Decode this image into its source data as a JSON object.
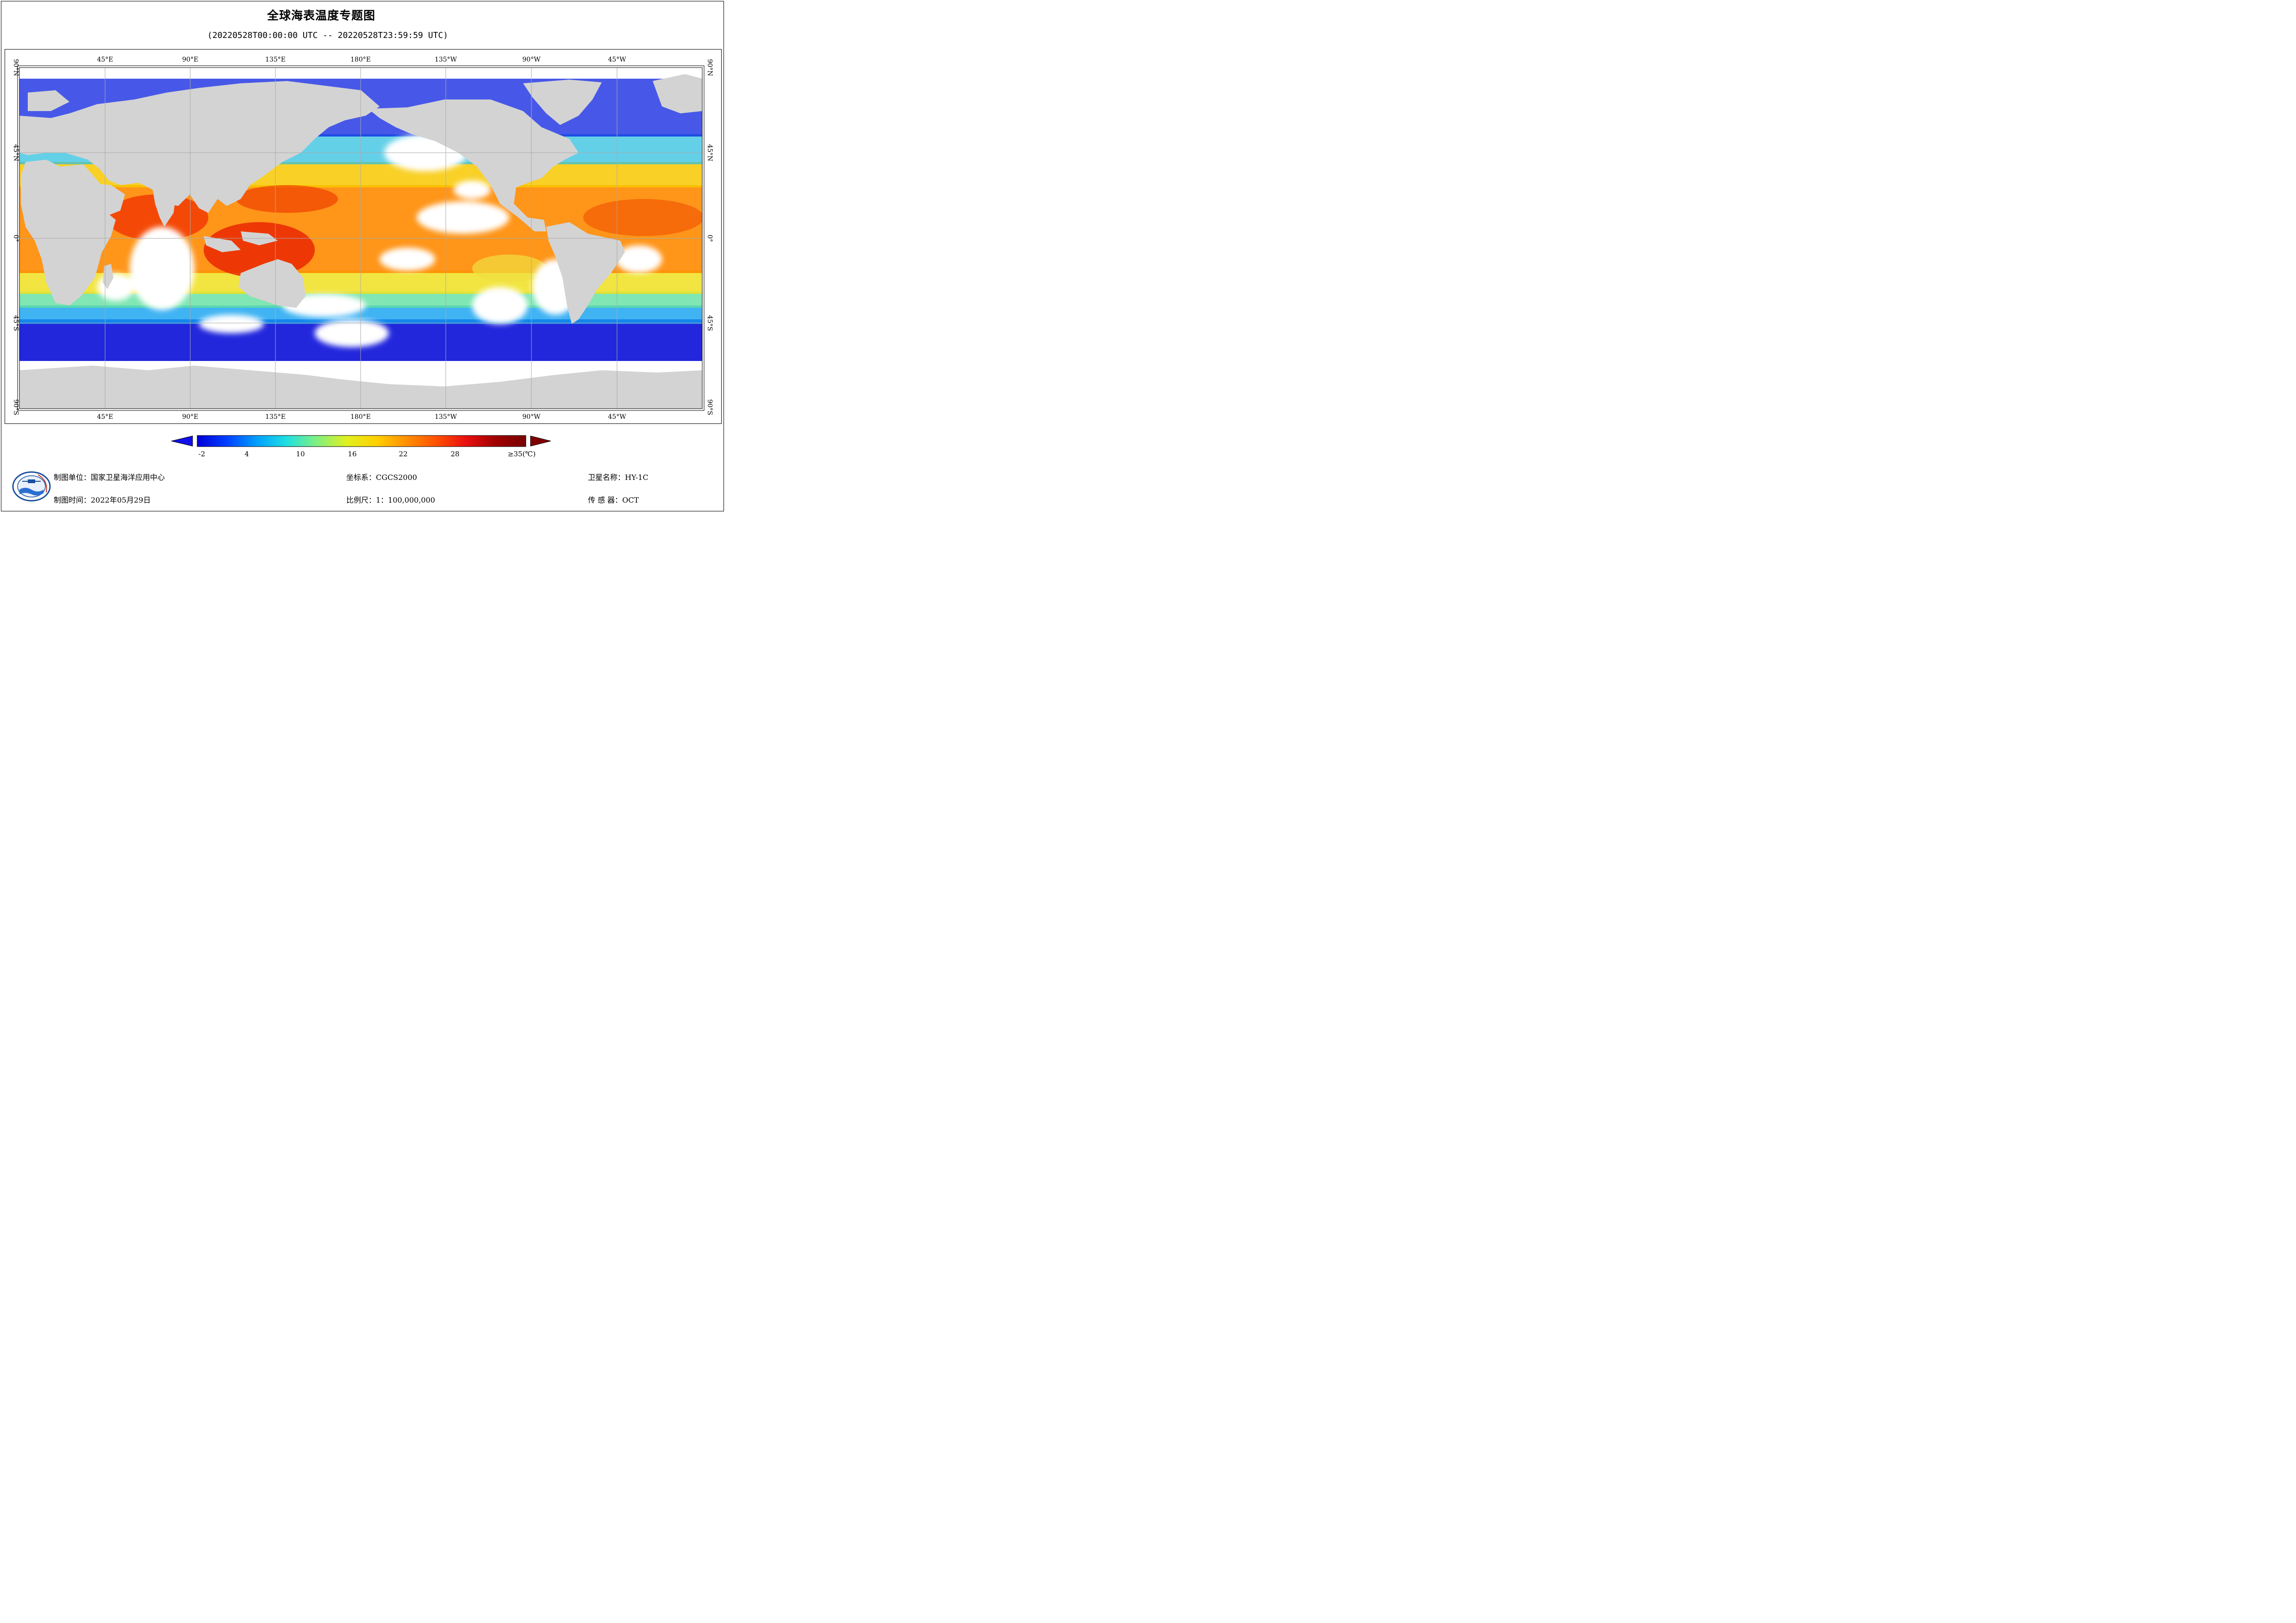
{
  "title": "全球海表温度专题图",
  "subtitle": "(20220528T00:00:00 UTC -- 20220528T23:59:59 UTC)",
  "map": {
    "top_lon_labels": [
      "45°E",
      "90°E",
      "135°E",
      "180°E",
      "135°W",
      "90°W",
      "45°W"
    ],
    "bottom_lon_labels": [
      "45°E",
      "90°E",
      "135°E",
      "180°E",
      "135°W",
      "90°W",
      "45°W"
    ],
    "lat_labels": [
      "90°N",
      "45°N",
      "0°",
      "45°S",
      "90°S"
    ],
    "land_color": "#d3d3d3",
    "cloud_color": "#ffffff"
  },
  "colorbar": {
    "labels": [
      "-2",
      "4",
      "10",
      "16",
      "22",
      "28",
      "≥35(℃)"
    ],
    "min": -2,
    "max": 35,
    "stops": [
      "#0000d8",
      "#0040ff",
      "#00a0ff",
      "#20e0e0",
      "#80f080",
      "#e0f020",
      "#ffd000",
      "#ff9000",
      "#ff5000",
      "#e81010",
      "#a00000",
      "#780000"
    ],
    "under_color": "#1010e8",
    "over_color": "#800000"
  },
  "footer": {
    "unit": "制图单位：国家卫星海洋应用中心",
    "time": "制图时间：2022年05月29日",
    "crs": "坐标系：CGCS2000",
    "scale": "比例尺：1：100,000,000",
    "satellite": "卫星名称：HY-1C",
    "sensor": "传 感 器：OCT"
  }
}
